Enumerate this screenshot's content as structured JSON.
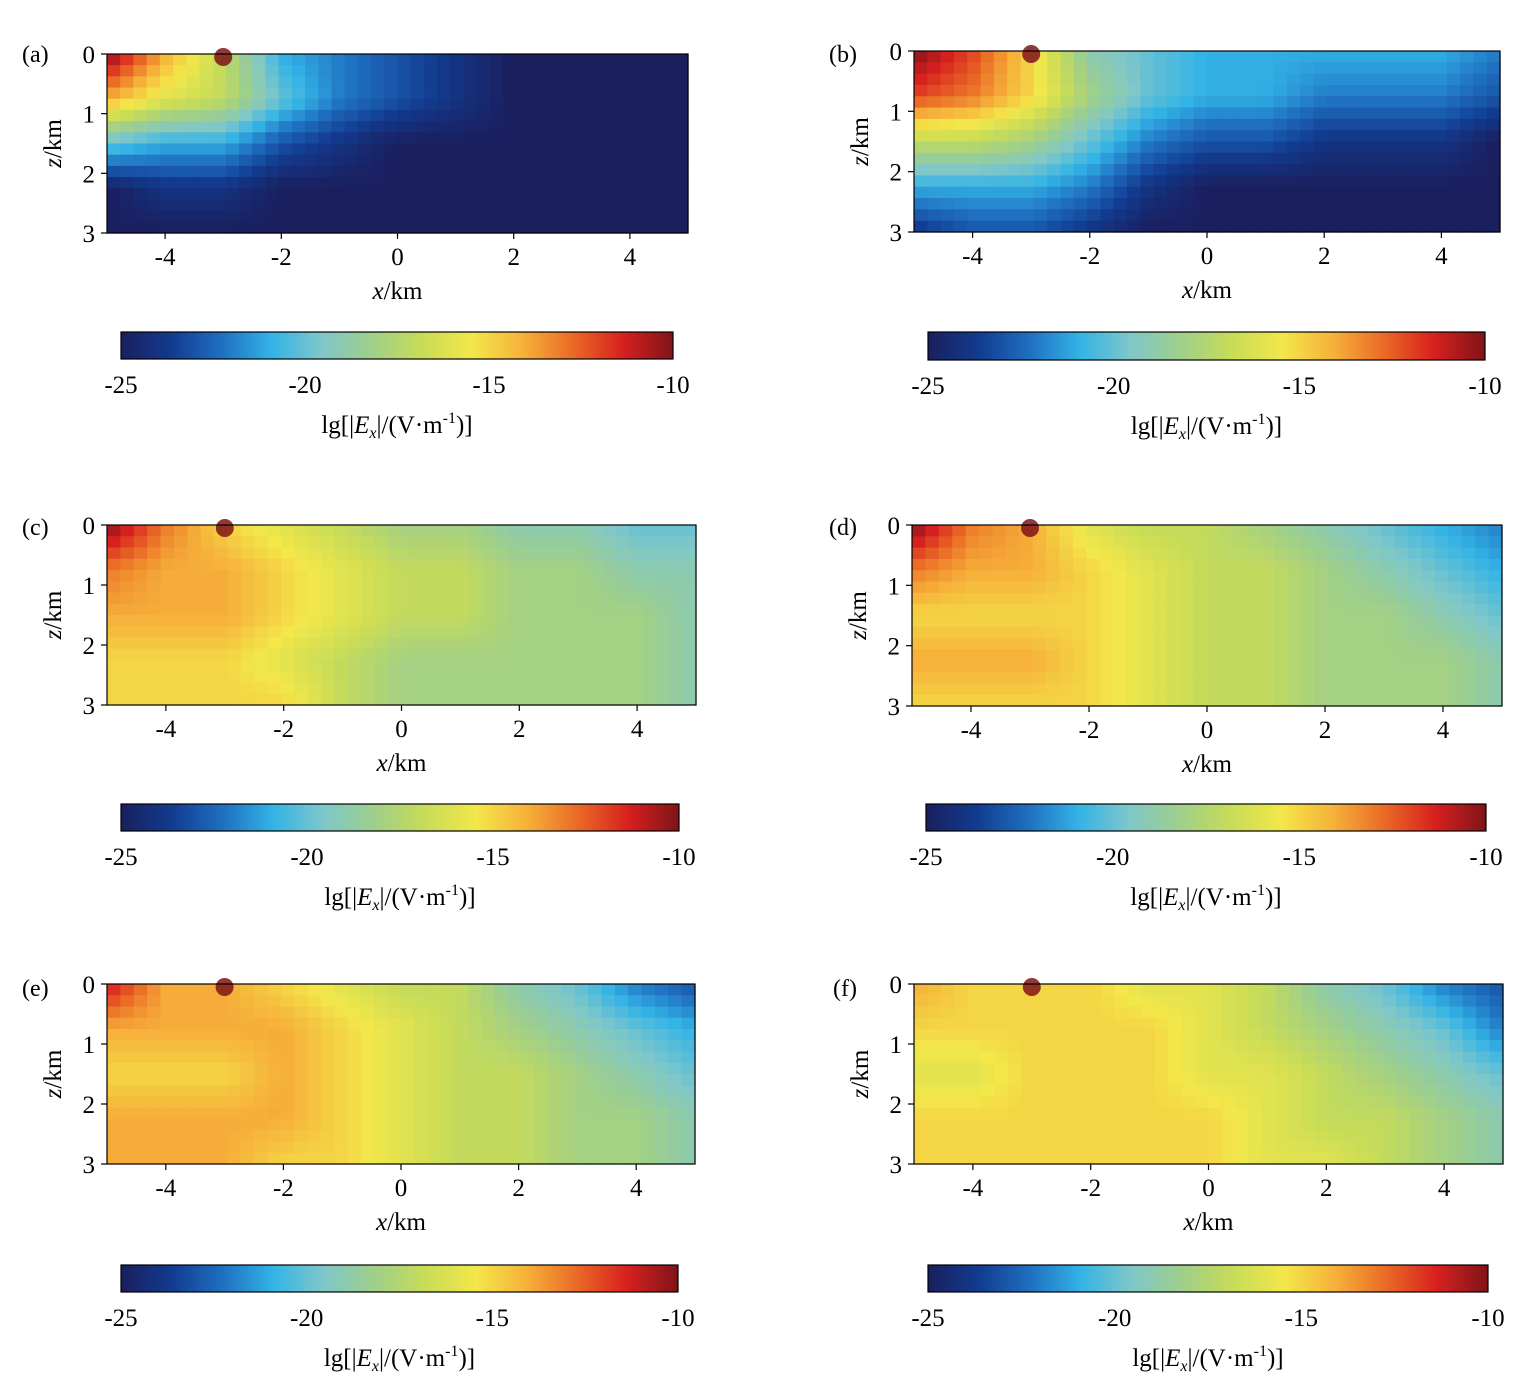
{
  "figure": {
    "background": "#ffffff"
  },
  "colormap": {
    "name": "jet",
    "stops": [
      "#1a1f5e",
      "#123b8f",
      "#1f6fc0",
      "#33b3e6",
      "#7fc7c9",
      "#9fcf8a",
      "#c8dc57",
      "#f3e74a",
      "#f6b13a",
      "#ea6a26",
      "#d7201f",
      "#7f1418"
    ]
  },
  "chart_data": [
    {
      "type": "heatmap",
      "panel_label": "(a)",
      "title": "",
      "xlabel": "x/km",
      "ylabel": "z/km",
      "xlim": [
        -5,
        5
      ],
      "ylim": [
        0,
        3
      ],
      "xticks": [
        -4,
        -2,
        0,
        2,
        4
      ],
      "yticks": [
        0,
        1,
        2,
        3
      ],
      "source_x": -3,
      "colorbar": {
        "label": "lg[|Ex|/(V·m-1)]",
        "ticks": [
          -25,
          -20,
          -15,
          -10
        ],
        "range": [
          -25,
          -10
        ]
      },
      "z": [
        [
          -10,
          -14,
          -17,
          -21,
          -22,
          -23,
          -24,
          -25,
          -25,
          -25,
          -25
        ],
        [
          -14,
          -16,
          -17,
          -20,
          -22,
          -23,
          -24,
          -25,
          -25,
          -25,
          -25
        ],
        [
          -20,
          -21,
          -21,
          -23,
          -24,
          -25,
          -25,
          -25,
          -25,
          -25,
          -25
        ],
        [
          -25,
          -24,
          -24,
          -25,
          -25,
          -25,
          -25,
          -25,
          -25,
          -25,
          -25
        ],
        [
          -25,
          -25,
          -25,
          -25,
          -25,
          -25,
          -25,
          -25,
          -25,
          -25,
          -25
        ]
      ]
    },
    {
      "type": "heatmap",
      "panel_label": "(b)",
      "title": "",
      "xlabel": "x/km",
      "ylabel": "z/km",
      "xlim": [
        -5,
        5
      ],
      "ylim": [
        0,
        3
      ],
      "xticks": [
        -4,
        -2,
        0,
        2,
        4
      ],
      "yticks": [
        0,
        1,
        2,
        3
      ],
      "source_x": -3,
      "colorbar": {
        "label": "lg[|Ex|/(V·m-1)]",
        "ticks": [
          -25,
          -20,
          -15,
          -10
        ],
        "range": [
          -25,
          -10
        ]
      },
      "z": [
        [
          -10,
          -12,
          -15,
          -19,
          -20,
          -21,
          -21,
          -21,
          -21,
          -21,
          -22
        ],
        [
          -12,
          -13,
          -15,
          -18,
          -20,
          -21,
          -21,
          -22,
          -22,
          -22,
          -23
        ],
        [
          -17,
          -17,
          -18,
          -20,
          -22,
          -23,
          -23,
          -24,
          -24,
          -24,
          -25
        ],
        [
          -21,
          -21,
          -21,
          -22,
          -24,
          -25,
          -25,
          -25,
          -25,
          -25,
          -25
        ],
        [
          -24,
          -23,
          -23,
          -24,
          -25,
          -25,
          -25,
          -25,
          -25,
          -25,
          -25
        ]
      ]
    },
    {
      "type": "heatmap",
      "panel_label": "(c)",
      "title": "",
      "xlabel": "x/km",
      "ylabel": "z/km",
      "xlim": [
        -5,
        5
      ],
      "ylim": [
        0,
        3
      ],
      "xticks": [
        -4,
        -2,
        0,
        2,
        4
      ],
      "yticks": [
        0,
        1,
        2,
        3
      ],
      "source_x": -3,
      "colorbar": {
        "label": "lg[|Ex|/(V·m-1)]",
        "ticks": [
          -25,
          -20,
          -15,
          -10
        ],
        "range": [
          -25,
          -10
        ]
      },
      "z": [
        [
          -10,
          -13,
          -15,
          -16,
          -17,
          -18,
          -18,
          -19,
          -19,
          -20,
          -20
        ],
        [
          -13,
          -14,
          -14,
          -15,
          -16,
          -17,
          -17,
          -18,
          -18,
          -19,
          -19
        ],
        [
          -14,
          -14,
          -14,
          -15,
          -16,
          -17,
          -17,
          -18,
          -18,
          -18,
          -19
        ],
        [
          -15,
          -15,
          -15,
          -16,
          -17,
          -18,
          -18,
          -18,
          -18,
          -18,
          -19
        ],
        [
          -15,
          -15,
          -15,
          -15,
          -17,
          -18,
          -18,
          -18,
          -18,
          -18,
          -19
        ]
      ]
    },
    {
      "type": "heatmap",
      "panel_label": "(d)",
      "title": "",
      "xlabel": "x/km",
      "ylabel": "z/km",
      "xlim": [
        -5,
        5
      ],
      "ylim": [
        0,
        3
      ],
      "xticks": [
        -4,
        -2,
        0,
        2,
        4
      ],
      "yticks": [
        0,
        1,
        2,
        3
      ],
      "source_x": -3,
      "colorbar": {
        "label": "lg[|Ex|/(V·m-1)]",
        "ticks": [
          -25,
          -20,
          -15,
          -10
        ],
        "range": [
          -25,
          -10
        ]
      },
      "z": [
        [
          -10,
          -13,
          -14,
          -16,
          -17,
          -17,
          -18,
          -19,
          -20,
          -21,
          -22
        ],
        [
          -13,
          -14,
          -14,
          -15,
          -16,
          -17,
          -17,
          -18,
          -19,
          -20,
          -21
        ],
        [
          -15,
          -15,
          -15,
          -15,
          -16,
          -17,
          -17,
          -18,
          -18,
          -19,
          -20
        ],
        [
          -14,
          -14,
          -14,
          -15,
          -16,
          -17,
          -17,
          -18,
          -18,
          -18,
          -19
        ],
        [
          -15,
          -15,
          -15,
          -15,
          -16,
          -17,
          -17,
          -18,
          -18,
          -18,
          -19
        ]
      ]
    },
    {
      "type": "heatmap",
      "panel_label": "(e)",
      "title": "",
      "xlabel": "x/km",
      "ylabel": "z/km",
      "xlim": [
        -5,
        5
      ],
      "ylim": [
        0,
        3
      ],
      "xticks": [
        -4,
        -2,
        0,
        2,
        4
      ],
      "yticks": [
        0,
        1,
        2,
        3
      ],
      "source_x": -3,
      "colorbar": {
        "label": "lg[|Ex|/(V·m-1)]",
        "ticks": [
          -25,
          -20,
          -15,
          -10
        ],
        "range": [
          -25,
          -10
        ]
      },
      "z": [
        [
          -11,
          -14,
          -14,
          -15,
          -16,
          -17,
          -17,
          -19,
          -20,
          -22,
          -23
        ],
        [
          -14,
          -14,
          -14,
          -14,
          -15,
          -16,
          -17,
          -18,
          -19,
          -20,
          -21
        ],
        [
          -15,
          -15,
          -15,
          -14,
          -15,
          -16,
          -17,
          -17,
          -18,
          -19,
          -20
        ],
        [
          -14,
          -14,
          -14,
          -14,
          -15,
          -16,
          -17,
          -17,
          -18,
          -18,
          -19
        ],
        [
          -14,
          -14,
          -14,
          -15,
          -15,
          -16,
          -17,
          -17,
          -18,
          -18,
          -19
        ]
      ]
    },
    {
      "type": "heatmap",
      "panel_label": "(f)",
      "title": "",
      "xlabel": "x/km",
      "ylabel": "z/km",
      "xlim": [
        -5,
        5
      ],
      "ylim": [
        0,
        3
      ],
      "xticks": [
        -4,
        -2,
        0,
        2,
        4
      ],
      "yticks": [
        0,
        1,
        2,
        3
      ],
      "source_x": -3,
      "colorbar": {
        "label": "lg[|Ex|/(V·m-1)]",
        "ticks": [
          -25,
          -20,
          -15,
          -10
        ],
        "range": [
          -25,
          -10
        ]
      },
      "z": [
        [
          -14,
          -15,
          -15,
          -15,
          -16,
          -16,
          -17,
          -19,
          -20,
          -22,
          -23
        ],
        [
          -15,
          -15,
          -15,
          -15,
          -15,
          -16,
          -17,
          -18,
          -19,
          -20,
          -22
        ],
        [
          -16,
          -16,
          -15,
          -15,
          -15,
          -16,
          -16,
          -17,
          -18,
          -19,
          -20
        ],
        [
          -15,
          -15,
          -15,
          -15,
          -15,
          -15,
          -16,
          -17,
          -17,
          -18,
          -19
        ],
        [
          -15,
          -15,
          -15,
          -15,
          -15,
          -15,
          -16,
          -16,
          -17,
          -18,
          -19
        ]
      ]
    }
  ]
}
